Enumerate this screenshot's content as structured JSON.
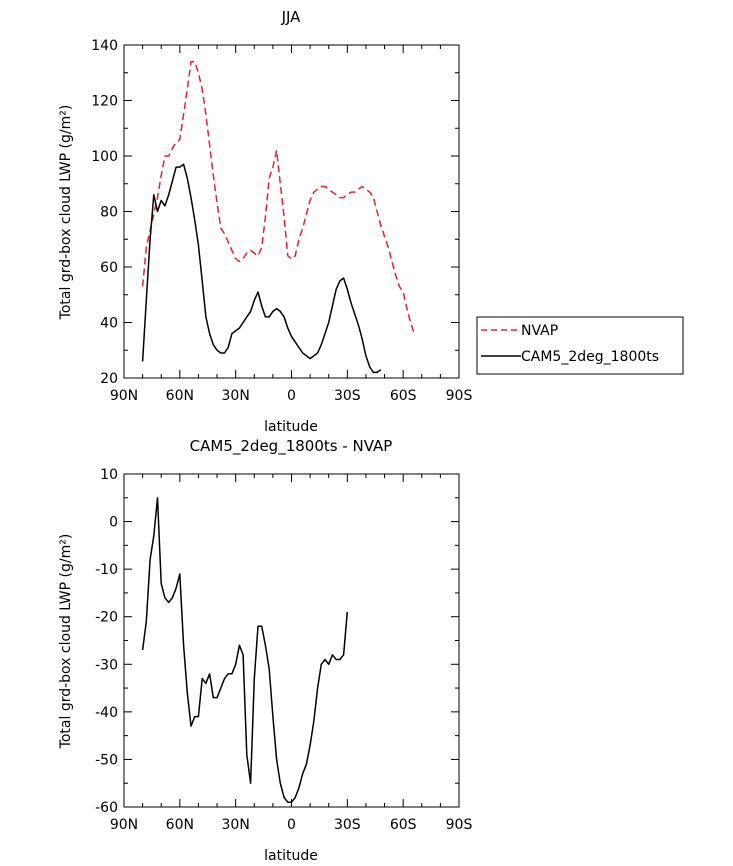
{
  "chart_data": [
    {
      "type": "line",
      "title": "JJA",
      "xlabel": "latitude",
      "ylabel": "Total grd-box cloud LWP (g/m²)",
      "xlim": [
        90,
        -90
      ],
      "ylim": [
        20,
        140
      ],
      "xticks": [
        90,
        60,
        30,
        0,
        -30,
        -60,
        -90
      ],
      "xtick_labels": [
        "90N",
        "60N",
        "30N",
        "0",
        "30S",
        "60S",
        "90S"
      ],
      "yticks": [
        20,
        40,
        60,
        80,
        100,
        120,
        140
      ],
      "ytick_labels": [
        "20",
        "40",
        "60",
        "80",
        "100",
        "120",
        "140"
      ],
      "legend_position": "right",
      "series": [
        {
          "name": "NVAP",
          "color": "#e8232a",
          "dash": "dashed",
          "points": [
            [
              80,
              53
            ],
            [
              78,
              67
            ],
            [
              75,
              76
            ],
            [
              72,
              85
            ],
            [
              70,
              93
            ],
            [
              68,
              100
            ],
            [
              66,
              100
            ],
            [
              63,
              104
            ],
            [
              60,
              106
            ],
            [
              58,
              115
            ],
            [
              56,
              124
            ],
            [
              54,
              134
            ],
            [
              52,
              134
            ],
            [
              50,
              130
            ],
            [
              48,
              124
            ],
            [
              46,
              115
            ],
            [
              44,
              104
            ],
            [
              42,
              93
            ],
            [
              40,
              83
            ],
            [
              38,
              74
            ],
            [
              36,
              72
            ],
            [
              34,
              69
            ],
            [
              32,
              66
            ],
            [
              30,
              63
            ],
            [
              28,
              62
            ],
            [
              26,
              63
            ],
            [
              24,
              65
            ],
            [
              22,
              66
            ],
            [
              20,
              65
            ],
            [
              18,
              64
            ],
            [
              16,
              67
            ],
            [
              14,
              78
            ],
            [
              12,
              92
            ],
            [
              10,
              96
            ],
            [
              8,
              102
            ],
            [
              6,
              90
            ],
            [
              4,
              78
            ],
            [
              2,
              64
            ],
            [
              0,
              63
            ],
            [
              -2,
              64
            ],
            [
              -4,
              70
            ],
            [
              -6,
              74
            ],
            [
              -8,
              79
            ],
            [
              -10,
              84
            ],
            [
              -12,
              87
            ],
            [
              -14,
              88
            ],
            [
              -16,
              89
            ],
            [
              -18,
              89
            ],
            [
              -20,
              88
            ],
            [
              -22,
              87
            ],
            [
              -24,
              86
            ],
            [
              -26,
              85
            ],
            [
              -28,
              85
            ],
            [
              -30,
              86
            ],
            [
              -32,
              87
            ],
            [
              -34,
              87
            ],
            [
              -36,
              88
            ],
            [
              -38,
              89
            ],
            [
              -40,
              88
            ],
            [
              -42,
              87
            ],
            [
              -44,
              85
            ],
            [
              -46,
              80
            ],
            [
              -48,
              75
            ],
            [
              -50,
              71
            ],
            [
              -52,
              67
            ],
            [
              -54,
              62
            ],
            [
              -56,
              57
            ],
            [
              -58,
              53
            ],
            [
              -60,
              51
            ],
            [
              -62,
              45
            ],
            [
              -64,
              40
            ],
            [
              -66,
              36
            ]
          ]
        },
        {
          "name": "CAM5_2deg_1800ts",
          "color": "#000000",
          "dash": "solid",
          "points": [
            [
              80,
              26
            ],
            [
              78,
              48
            ],
            [
              76,
              70
            ],
            [
              74,
              86
            ],
            [
              72,
              80
            ],
            [
              70,
              84
            ],
            [
              68,
              82
            ],
            [
              66,
              86
            ],
            [
              64,
              91
            ],
            [
              62,
              96
            ],
            [
              60,
              96
            ],
            [
              58,
              97
            ],
            [
              56,
              92
            ],
            [
              54,
              85
            ],
            [
              52,
              77
            ],
            [
              50,
              68
            ],
            [
              48,
              55
            ],
            [
              46,
              42
            ],
            [
              44,
              36
            ],
            [
              42,
              32
            ],
            [
              40,
              30
            ],
            [
              38,
              29
            ],
            [
              36,
              29
            ],
            [
              34,
              31
            ],
            [
              32,
              36
            ],
            [
              30,
              37
            ],
            [
              28,
              38
            ],
            [
              26,
              40
            ],
            [
              24,
              42
            ],
            [
              22,
              44
            ],
            [
              20,
              48
            ],
            [
              18,
              51
            ],
            [
              16,
              46
            ],
            [
              14,
              42
            ],
            [
              12,
              42
            ],
            [
              10,
              44
            ],
            [
              8,
              45
            ],
            [
              6,
              44
            ],
            [
              4,
              42
            ],
            [
              2,
              38
            ],
            [
              0,
              35
            ],
            [
              -2,
              33
            ],
            [
              -4,
              31
            ],
            [
              -6,
              29
            ],
            [
              -8,
              28
            ],
            [
              -10,
              27
            ],
            [
              -12,
              28
            ],
            [
              -14,
              29
            ],
            [
              -16,
              32
            ],
            [
              -18,
              36
            ],
            [
              -20,
              40
            ],
            [
              -22,
              46
            ],
            [
              -24,
              52
            ],
            [
              -26,
              55
            ],
            [
              -28,
              56
            ],
            [
              -30,
              52
            ],
            [
              -32,
              47
            ],
            [
              -34,
              43
            ],
            [
              -36,
              39
            ],
            [
              -38,
              34
            ],
            [
              -40,
              28
            ],
            [
              -42,
              24
            ],
            [
              -44,
              22
            ],
            [
              -46,
              22
            ],
            [
              -48,
              23
            ]
          ]
        }
      ]
    },
    {
      "type": "line",
      "title": "CAM5_2deg_1800ts - NVAP",
      "xlabel": "latitude",
      "ylabel": "Total grd-box cloud LWP (g/m²)",
      "xlim": [
        90,
        -90
      ],
      "ylim": [
        -60,
        10
      ],
      "xticks": [
        90,
        60,
        30,
        0,
        -30,
        -60,
        -90
      ],
      "xtick_labels": [
        "90N",
        "60N",
        "30N",
        "0",
        "30S",
        "60S",
        "90S"
      ],
      "yticks": [
        -60,
        -50,
        -40,
        -30,
        -20,
        -10,
        0,
        10
      ],
      "ytick_labels": [
        "-60",
        "-50",
        "-40",
        "-30",
        "-20",
        "-10",
        "0",
        "10"
      ],
      "series": [
        {
          "color": "#000000",
          "dash": "solid",
          "points": [
            [
              80,
              -27
            ],
            [
              78,
              -21
            ],
            [
              76,
              -8
            ],
            [
              74,
              -3
            ],
            [
              72,
              5
            ],
            [
              70,
              -13
            ],
            [
              68,
              -16
            ],
            [
              66,
              -17
            ],
            [
              64,
              -16
            ],
            [
              62,
              -14
            ],
            [
              60,
              -11
            ],
            [
              58,
              -26
            ],
            [
              56,
              -36
            ],
            [
              54,
              -43
            ],
            [
              52,
              -41
            ],
            [
              50,
              -41
            ],
            [
              48,
              -33
            ],
            [
              46,
              -34
            ],
            [
              44,
              -32
            ],
            [
              42,
              -37
            ],
            [
              40,
              -37
            ],
            [
              38,
              -35
            ],
            [
              36,
              -33
            ],
            [
              34,
              -32
            ],
            [
              32,
              -32
            ],
            [
              30,
              -30
            ],
            [
              28,
              -26
            ],
            [
              26,
              -28
            ],
            [
              24,
              -49
            ],
            [
              22,
              -55
            ],
            [
              20,
              -33
            ],
            [
              18,
              -22
            ],
            [
              16,
              -22
            ],
            [
              14,
              -26
            ],
            [
              12,
              -31
            ],
            [
              10,
              -41
            ],
            [
              8,
              -50
            ],
            [
              6,
              -55
            ],
            [
              4,
              -58
            ],
            [
              2,
              -59
            ],
            [
              0,
              -59
            ],
            [
              -2,
              -58
            ],
            [
              -4,
              -56
            ],
            [
              -6,
              -53
            ],
            [
              -8,
              -51
            ],
            [
              -10,
              -47
            ],
            [
              -12,
              -42
            ],
            [
              -14,
              -35
            ],
            [
              -16,
              -30
            ],
            [
              -18,
              -29
            ],
            [
              -20,
              -30
            ],
            [
              -22,
              -28
            ],
            [
              -24,
              -29
            ],
            [
              -26,
              -29
            ],
            [
              -28,
              -28
            ],
            [
              -30,
              -19
            ]
          ]
        }
      ]
    }
  ]
}
